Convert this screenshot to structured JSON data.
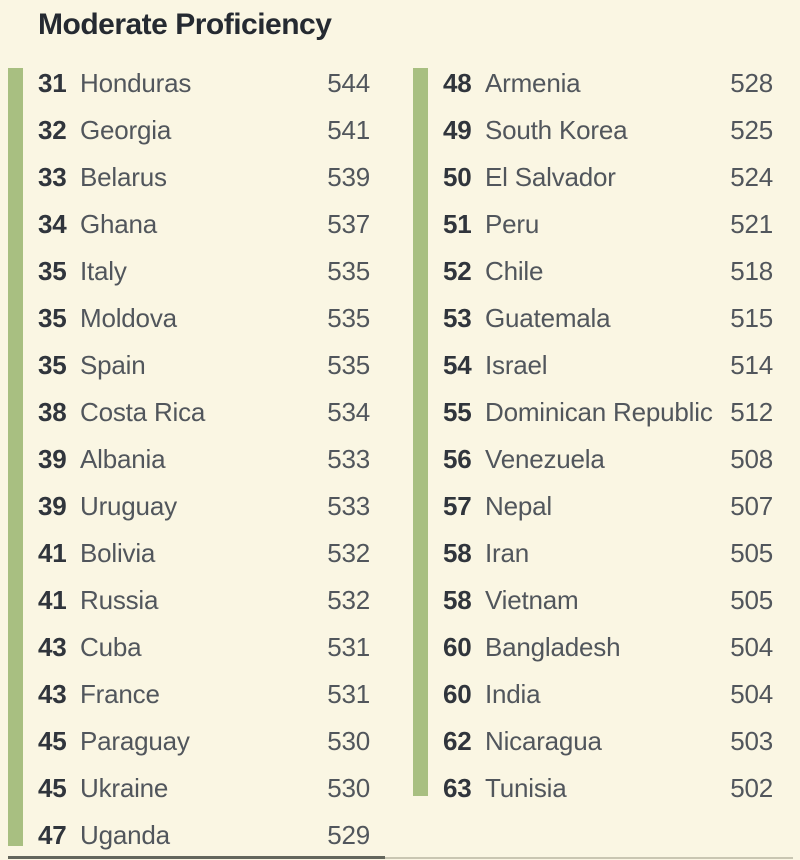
{
  "title": "Moderate Proficiency",
  "colors": {
    "background": "#faf6e3",
    "band_green": "#a8bf81",
    "title_text": "#252a31",
    "rank_text": "#30353c",
    "body_text": "#51565c"
  },
  "chart_data": {
    "type": "table",
    "title": "Moderate Proficiency",
    "columns": [
      "rank",
      "country",
      "score"
    ],
    "left_column": [
      {
        "rank": "31",
        "country": "Honduras",
        "score": "544"
      },
      {
        "rank": "32",
        "country": "Georgia",
        "score": "541"
      },
      {
        "rank": "33",
        "country": "Belarus",
        "score": "539"
      },
      {
        "rank": "34",
        "country": "Ghana",
        "score": "537"
      },
      {
        "rank": "35",
        "country": "Italy",
        "score": "535"
      },
      {
        "rank": "35",
        "country": "Moldova",
        "score": "535"
      },
      {
        "rank": "35",
        "country": "Spain",
        "score": "535"
      },
      {
        "rank": "38",
        "country": "Costa Rica",
        "score": "534"
      },
      {
        "rank": "39",
        "country": "Albania",
        "score": "533"
      },
      {
        "rank": "39",
        "country": "Uruguay",
        "score": "533"
      },
      {
        "rank": "41",
        "country": "Bolivia",
        "score": "532"
      },
      {
        "rank": "41",
        "country": "Russia",
        "score": "532"
      },
      {
        "rank": "43",
        "country": "Cuba",
        "score": "531"
      },
      {
        "rank": "43",
        "country": "France",
        "score": "531"
      },
      {
        "rank": "45",
        "country": "Paraguay",
        "score": "530"
      },
      {
        "rank": "45",
        "country": "Ukraine",
        "score": "530"
      },
      {
        "rank": "47",
        "country": "Uganda",
        "score": "529"
      }
    ],
    "right_column": [
      {
        "rank": "48",
        "country": "Armenia",
        "score": "528"
      },
      {
        "rank": "49",
        "country": "South Korea",
        "score": "525"
      },
      {
        "rank": "50",
        "country": "El Salvador",
        "score": "524"
      },
      {
        "rank": "51",
        "country": "Peru",
        "score": "521"
      },
      {
        "rank": "52",
        "country": "Chile",
        "score": "518"
      },
      {
        "rank": "53",
        "country": "Guatemala",
        "score": "515"
      },
      {
        "rank": "54",
        "country": "Israel",
        "score": "514"
      },
      {
        "rank": "55",
        "country": "Dominican Republic",
        "score": "512"
      },
      {
        "rank": "56",
        "country": "Venezuela",
        "score": "508"
      },
      {
        "rank": "57",
        "country": "Nepal",
        "score": "507"
      },
      {
        "rank": "58",
        "country": "Iran",
        "score": "505"
      },
      {
        "rank": "58",
        "country": "Vietnam",
        "score": "505"
      },
      {
        "rank": "60",
        "country": "Bangladesh",
        "score": "504"
      },
      {
        "rank": "60",
        "country": "India",
        "score": "504"
      },
      {
        "rank": "62",
        "country": "Nicaragua",
        "score": "503"
      },
      {
        "rank": "63",
        "country": "Tunisia",
        "score": "502"
      }
    ]
  }
}
